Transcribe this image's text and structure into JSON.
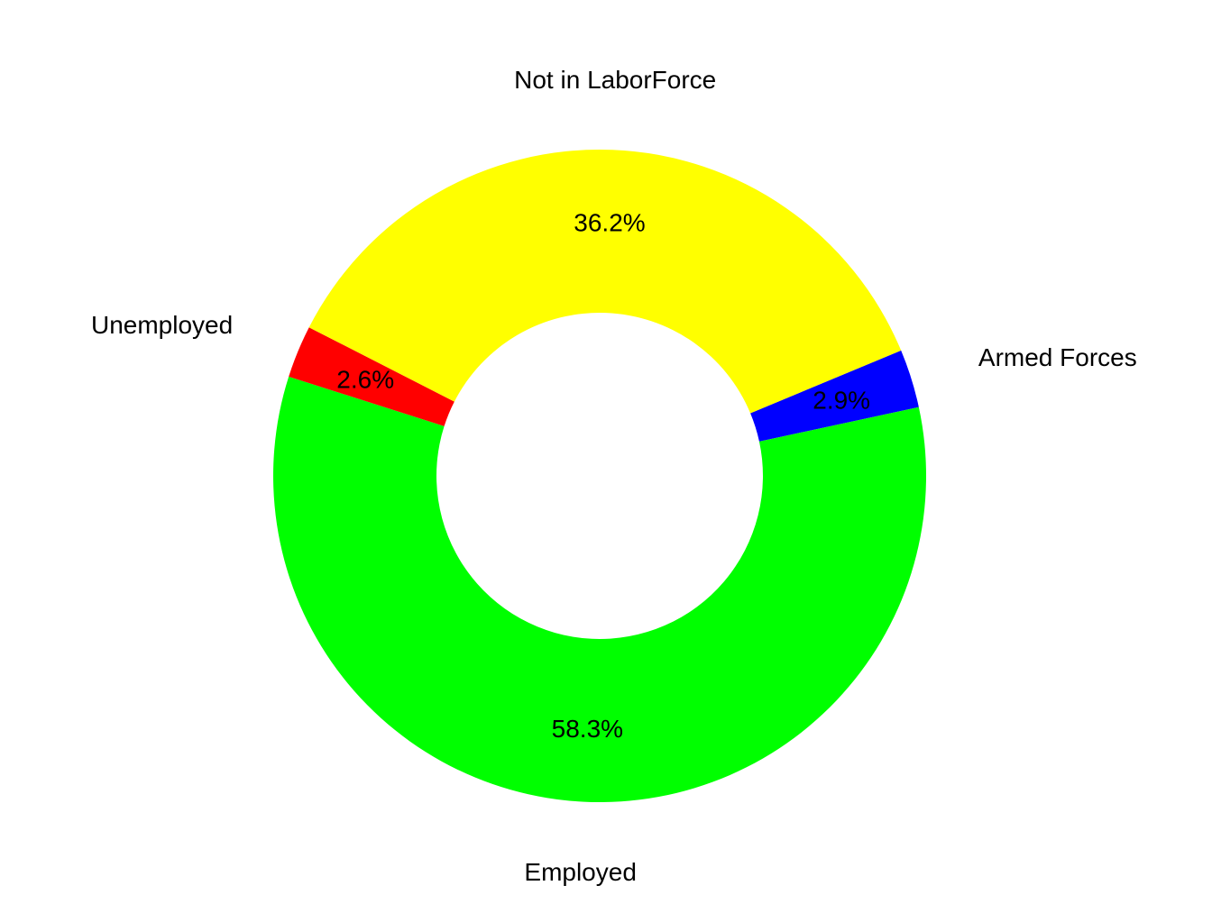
{
  "chart_data": {
    "type": "pie",
    "variant": "donut",
    "categories": [
      "Employed",
      "Unemployed",
      "Not in LaborForce",
      "Armed Forces"
    ],
    "values": [
      58.3,
      2.6,
      36.2,
      2.9
    ],
    "value_labels": [
      "58.3%",
      "2.6%",
      "36.2%",
      "2.9%"
    ],
    "colors": [
      "#00ff00",
      "#ff0000",
      "#ffff00",
      "#0000ff"
    ],
    "direction": "clockwise",
    "legend": "none",
    "title": "",
    "xlabel": "",
    "ylabel": ""
  }
}
